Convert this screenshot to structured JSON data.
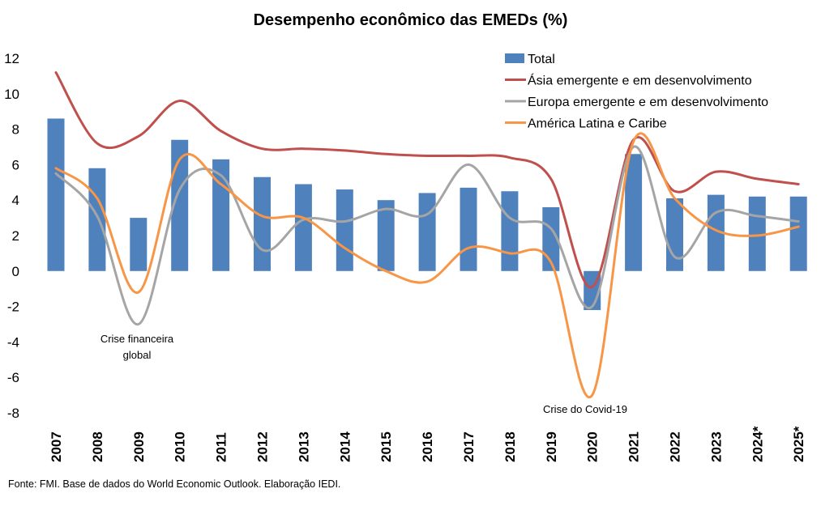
{
  "chart_data": {
    "type": "bar",
    "title": "Desempenho econômico das EMEDs (%)",
    "xlabel": "",
    "ylabel": "",
    "ylim": [
      -8,
      12
    ],
    "yticks": [
      "12",
      "10",
      "8",
      "6",
      "4",
      "2",
      "0",
      "-2",
      "-4",
      "-6",
      "-8"
    ],
    "categories": [
      "2007",
      "2008",
      "2009",
      "2010",
      "2011",
      "2012",
      "2013",
      "2014",
      "2015",
      "2016",
      "2017",
      "2018",
      "2019",
      "2020",
      "2021",
      "2022",
      "2023",
      "2024*",
      "2025*"
    ],
    "legend_position": "top-right",
    "grid": false,
    "series": [
      {
        "name": "Total",
        "type": "bar",
        "color": "#4f81bd",
        "values": [
          8.6,
          5.8,
          3.0,
          7.4,
          6.3,
          5.3,
          4.9,
          4.6,
          4.0,
          4.4,
          4.7,
          4.5,
          3.6,
          -2.2,
          6.6,
          4.1,
          4.3,
          4.2,
          4.2
        ]
      },
      {
        "name": "Ásia emergente e em desenvolvimento",
        "type": "line",
        "color": "#c0504d",
        "values": [
          11.2,
          7.2,
          7.6,
          9.6,
          7.9,
          6.9,
          6.9,
          6.8,
          6.6,
          6.5,
          6.5,
          6.4,
          5.2,
          -0.9,
          7.4,
          4.5,
          5.6,
          5.2,
          4.9
        ]
      },
      {
        "name": "Europa emergente e em desenvolvimento",
        "type": "line",
        "color": "#a5a5a5",
        "values": [
          5.5,
          3.1,
          -3.0,
          4.6,
          5.4,
          1.2,
          2.9,
          2.8,
          3.5,
          3.2,
          6.0,
          3.0,
          2.4,
          -2.0,
          7.0,
          0.8,
          3.3,
          3.1,
          2.8
        ]
      },
      {
        "name": "América Latina e Caribe",
        "type": "line",
        "color": "#f79646",
        "values": [
          5.8,
          4.1,
          -1.2,
          6.3,
          4.9,
          3.1,
          3.0,
          1.3,
          0.0,
          -0.6,
          1.3,
          1.0,
          0.5,
          -7.0,
          7.3,
          4.1,
          2.3,
          2.0,
          2.5
        ]
      }
    ],
    "annotations": [
      {
        "category": "2009",
        "text": "Crise financeira global"
      },
      {
        "category": "2020",
        "text": "Crise do Covid-19"
      }
    ]
  },
  "annotations": {
    "crise_line1": "Crise financeira",
    "crise_line2": "global",
    "covid": "Crise do Covid-19"
  },
  "footer": {
    "source": "Fonte: FMI. Base de dados do World Economic Outlook. Elaboração IEDI."
  }
}
